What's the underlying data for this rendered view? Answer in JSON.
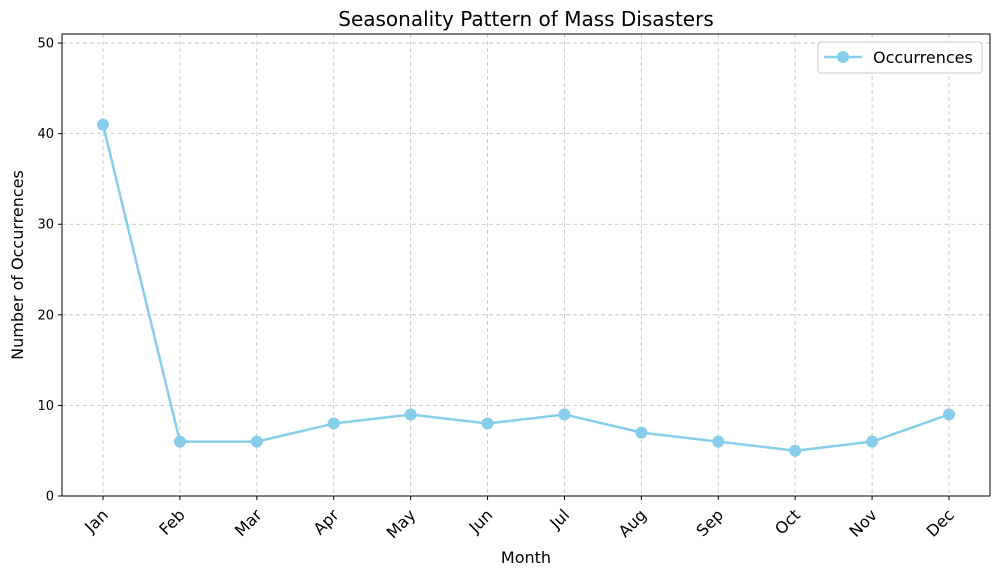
{
  "chart_data": {
    "type": "line",
    "title": "Seasonality Pattern of Mass Disasters",
    "xlabel": "Month",
    "ylabel": "Number of Occurrences",
    "categories": [
      "Jan",
      "Feb",
      "Mar",
      "Apr",
      "May",
      "Jun",
      "Jul",
      "Aug",
      "Sep",
      "Oct",
      "Nov",
      "Dec"
    ],
    "series": [
      {
        "name": "Occurrences",
        "values": [
          41,
          6,
          6,
          8,
          9,
          8,
          9,
          7,
          6,
          5,
          6,
          9
        ],
        "color": "#87CEEB",
        "marker": "circle"
      }
    ],
    "ylim": [
      0,
      51
    ],
    "yticks": [
      0,
      10,
      20,
      30,
      40,
      50
    ],
    "grid": true,
    "grid_style": "dashed",
    "legend_position": "top-right",
    "xtick_rotation": 45
  }
}
